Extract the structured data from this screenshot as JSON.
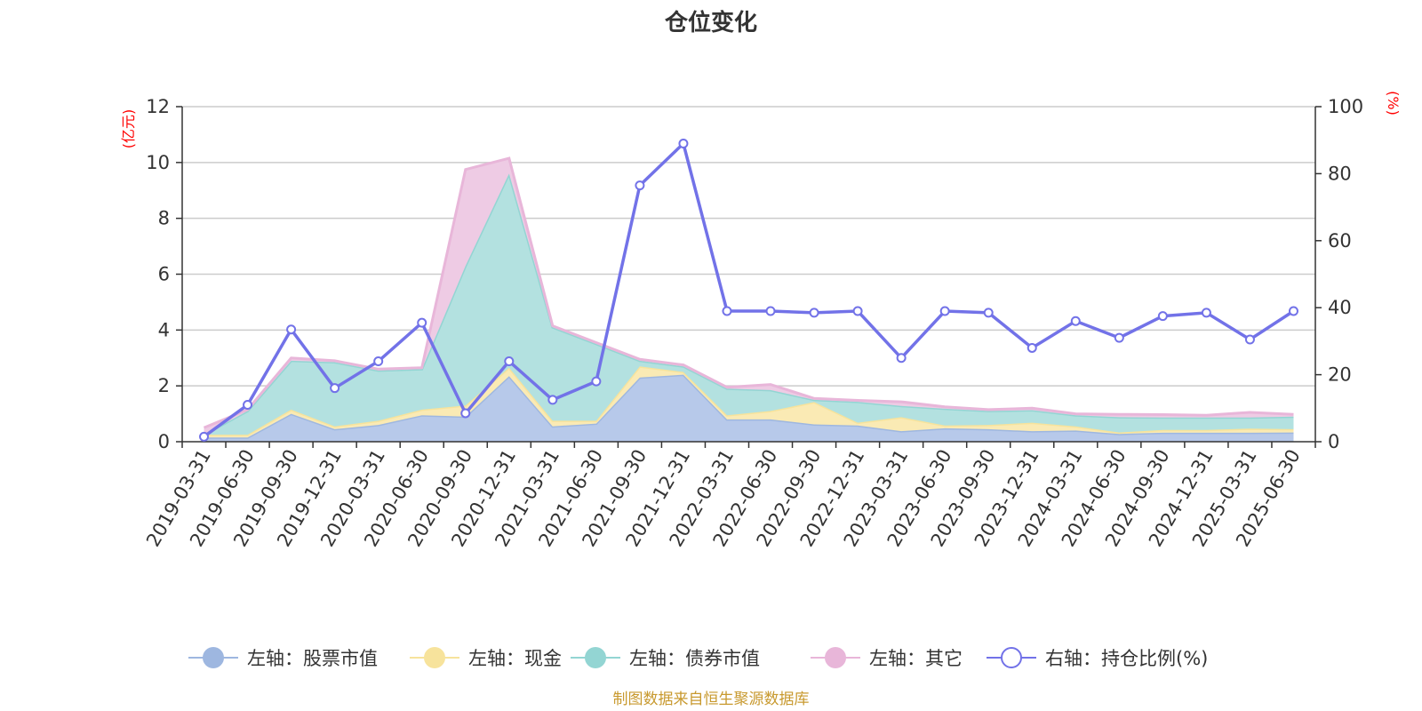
{
  "chart_data": {
    "type": "area",
    "title": "仓位变化",
    "left_unit": "(亿元)",
    "right_unit": "(%)",
    "x": [
      "2019-03-31",
      "2019-06-30",
      "2019-09-30",
      "2019-12-31",
      "2020-03-31",
      "2020-06-30",
      "2020-09-30",
      "2020-12-31",
      "2021-03-31",
      "2021-06-30",
      "2021-09-30",
      "2021-12-31",
      "2022-03-31",
      "2022-06-30",
      "2022-09-30",
      "2022-12-31",
      "2023-03-31",
      "2023-06-30",
      "2023-09-30",
      "2023-12-31",
      "2024-03-31",
      "2024-06-30",
      "2024-09-30",
      "2024-12-31",
      "2025-03-31",
      "2025-06-30"
    ],
    "ylim_left": [
      0,
      12
    ],
    "yticks_left": [
      0,
      2,
      4,
      6,
      8,
      10,
      12
    ],
    "ylim_right": [
      0,
      100
    ],
    "yticks_right": [
      0,
      20,
      40,
      60,
      80,
      100
    ],
    "grid": true,
    "legend_position": "bottom",
    "series": [
      {
        "name": "左轴：股票市值",
        "axis": "left",
        "kind": "area",
        "color": "#9eb7e0",
        "fill": "#b7c9ea",
        "values": [
          0.15,
          0.15,
          1.0,
          0.45,
          0.6,
          0.95,
          0.9,
          2.35,
          0.55,
          0.65,
          2.3,
          2.4,
          0.8,
          0.8,
          0.62,
          0.58,
          0.38,
          0.48,
          0.45,
          0.38,
          0.4,
          0.28,
          0.32,
          0.32,
          0.32,
          0.33
        ]
      },
      {
        "name": "左轴：现金",
        "axis": "left",
        "kind": "area",
        "color": "#f7e39c",
        "fill": "#faeab4",
        "values": [
          0.1,
          0.1,
          0.15,
          0.1,
          0.15,
          0.2,
          0.4,
          0.3,
          0.2,
          0.1,
          0.4,
          0.1,
          0.15,
          0.3,
          0.8,
          0.1,
          0.5,
          0.1,
          0.15,
          0.3,
          0.15,
          0.05,
          0.1,
          0.1,
          0.15,
          0.12
        ]
      },
      {
        "name": "左轴：债券市值",
        "axis": "left",
        "kind": "area",
        "color": "#93d5d3",
        "fill": "#b3e1e0",
        "values": [
          0.0,
          0.85,
          1.75,
          2.3,
          1.8,
          1.45,
          5.0,
          6.95,
          3.35,
          2.75,
          0.2,
          0.2,
          0.95,
          0.75,
          0.08,
          0.75,
          0.4,
          0.6,
          0.5,
          0.45,
          0.4,
          0.55,
          0.45,
          0.45,
          0.4,
          0.45
        ]
      },
      {
        "name": "左轴：其它",
        "axis": "left",
        "kind": "area",
        "color": "#e8b6d9",
        "fill": "#eecbe4",
        "values": [
          0.25,
          0.05,
          0.1,
          0.05,
          0.05,
          0.05,
          3.45,
          0.55,
          0.05,
          0.05,
          0.05,
          0.05,
          0.05,
          0.2,
          0.05,
          0.05,
          0.15,
          0.07,
          0.05,
          0.07,
          0.05,
          0.1,
          0.1,
          0.08,
          0.18,
          0.08
        ]
      },
      {
        "name": "右轴：持仓比例(%)",
        "axis": "right",
        "kind": "line",
        "color": "#7272e8",
        "values": [
          1.5,
          11.0,
          33.5,
          16.0,
          24.0,
          35.5,
          8.5,
          24.0,
          12.5,
          18.0,
          76.5,
          89.0,
          39.0,
          39.0,
          38.5,
          39.0,
          25.0,
          39.0,
          38.5,
          28.0,
          36.0,
          31.0,
          37.5,
          38.5,
          30.5,
          39.0
        ]
      }
    ],
    "source": "制图数据来自恒生聚源数据库"
  }
}
